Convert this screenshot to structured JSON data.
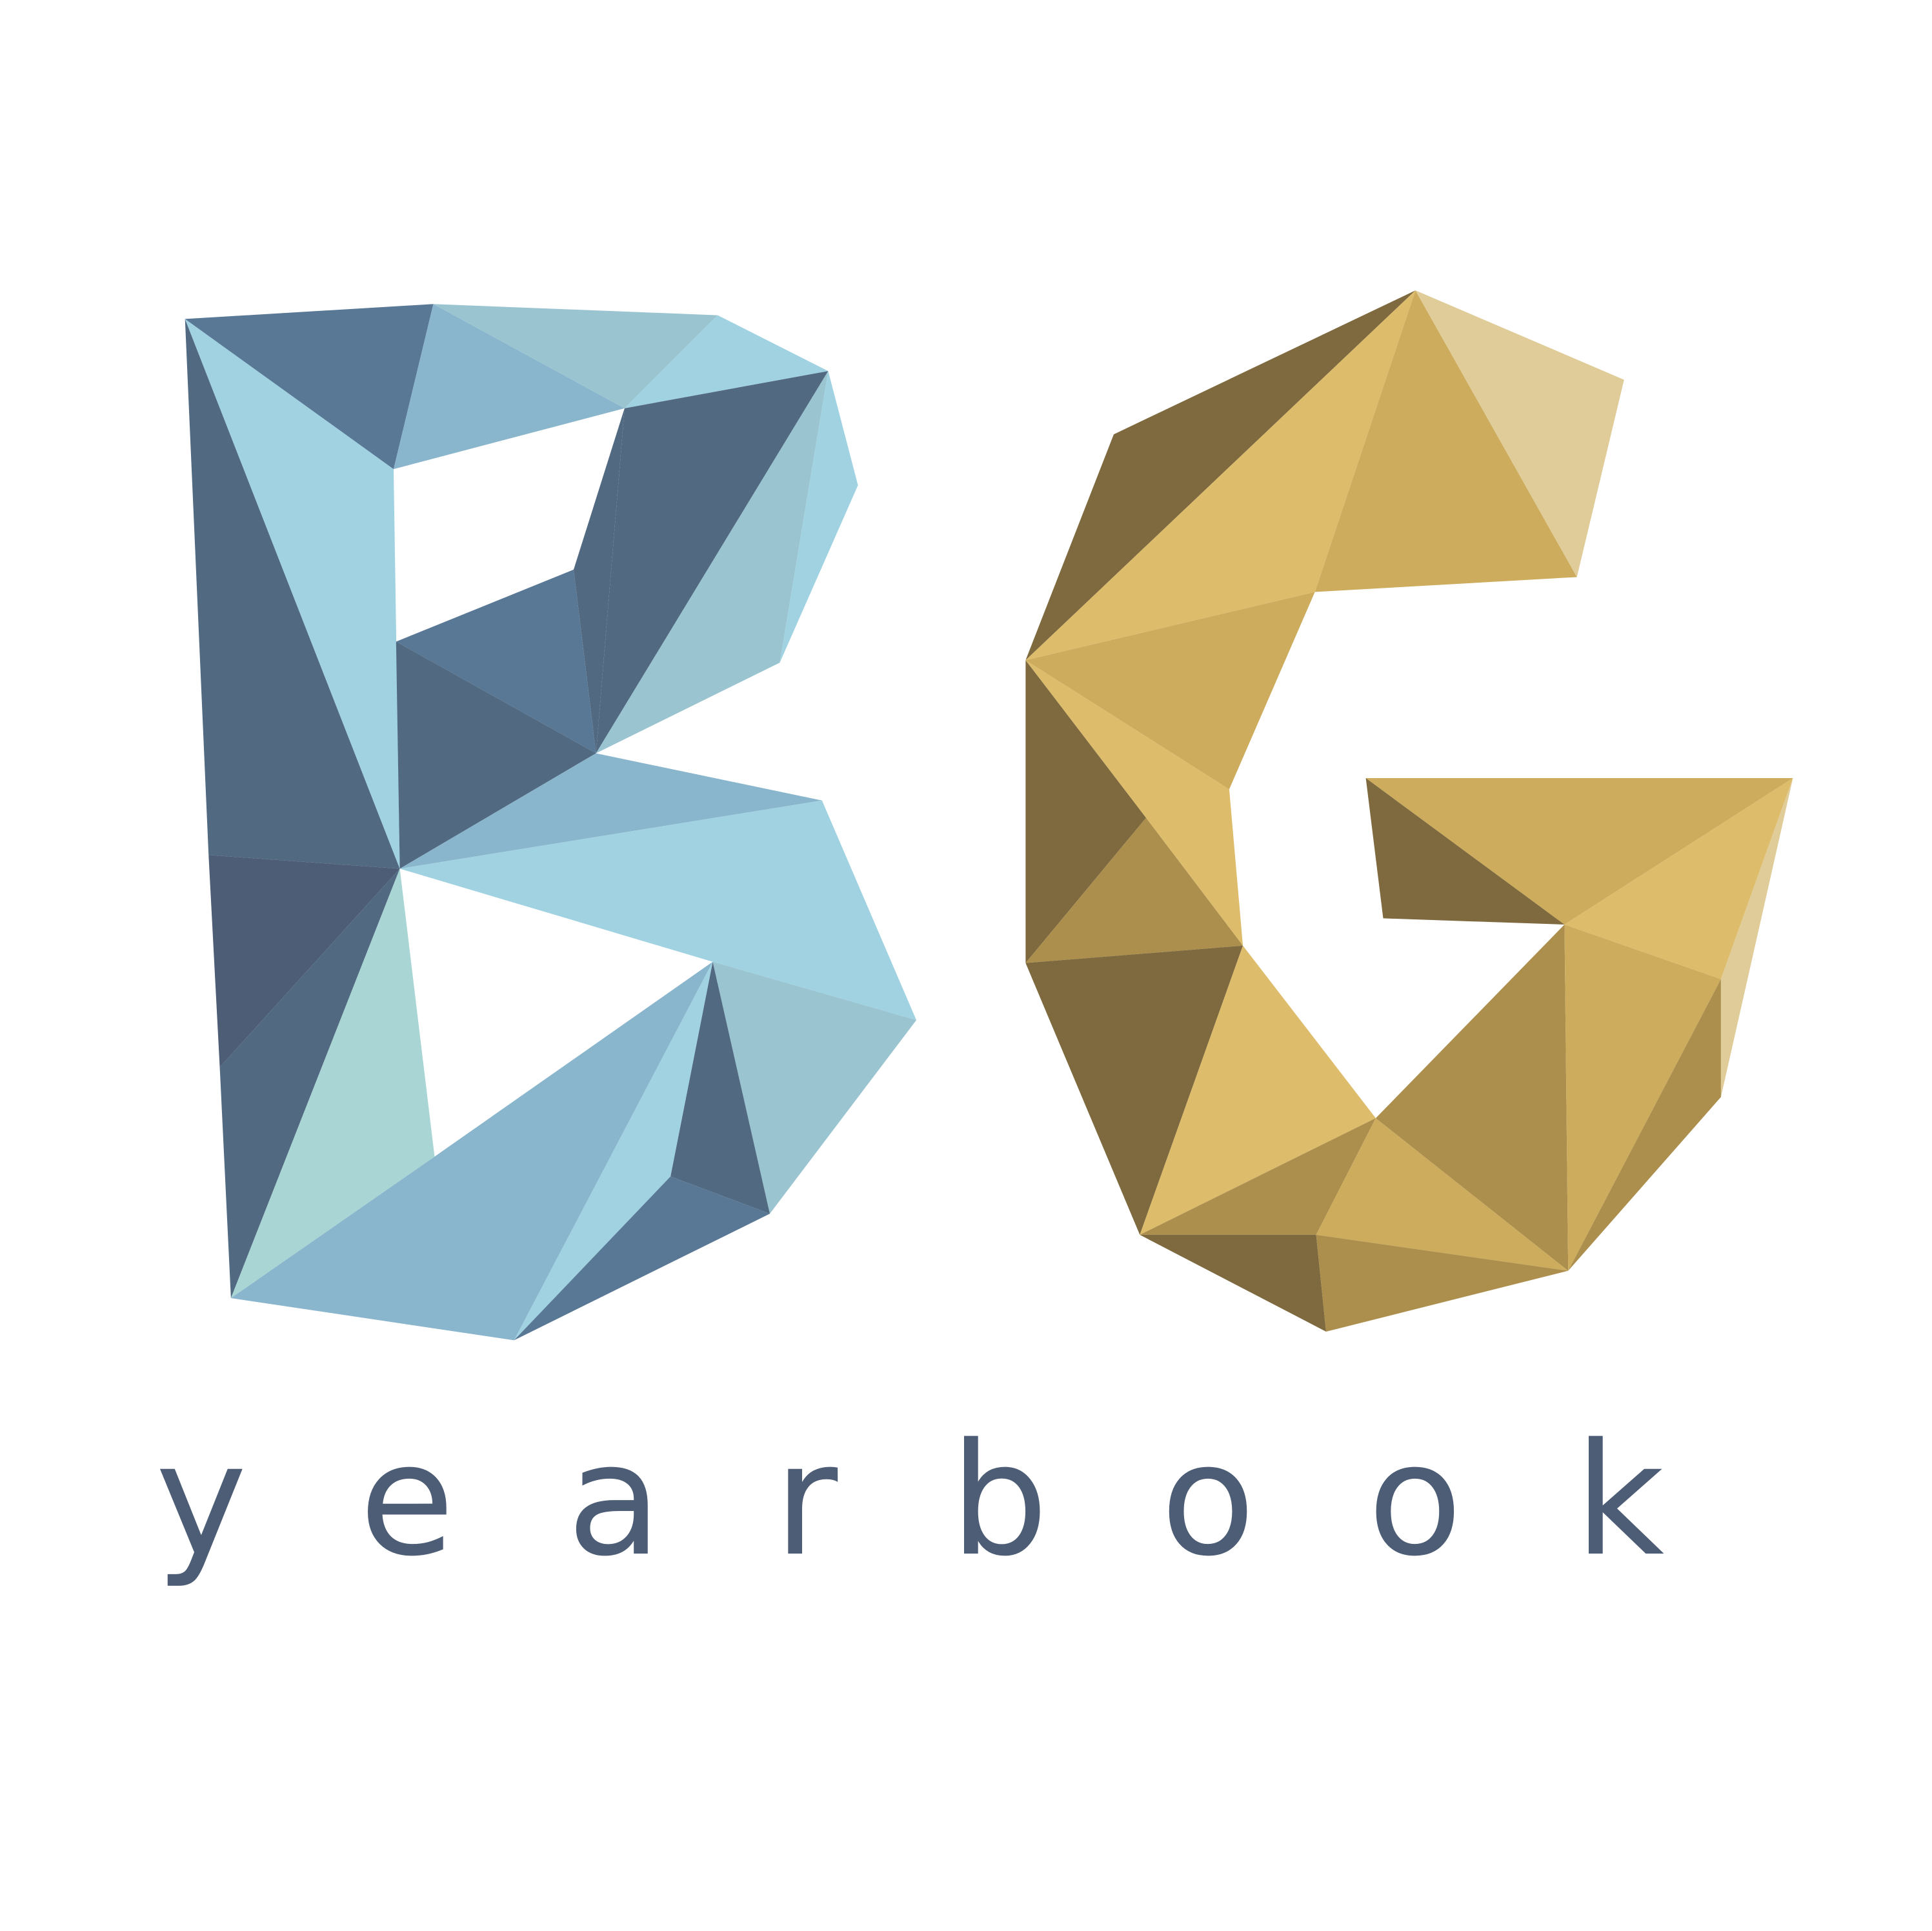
{
  "logo": {
    "monogram": "BG",
    "wordmark": "yearbook",
    "colors": {
      "blue_dark": "#516a81",
      "blue_slate": "#4c5d75",
      "blue_mid": "#587896",
      "blue_soft": "#8ab6cd",
      "blue_light": "#a0d2e2",
      "blue_grey": "#99c4d0",
      "mint": "#a9d6d5",
      "gold_dark": "#7e6a3e",
      "gold_mid": "#ac8f4d",
      "gold": "#cdad5d",
      "gold_light": "#ddbc6c",
      "gold_pale": "#e0cc98",
      "text": "#4c5d75"
    }
  }
}
